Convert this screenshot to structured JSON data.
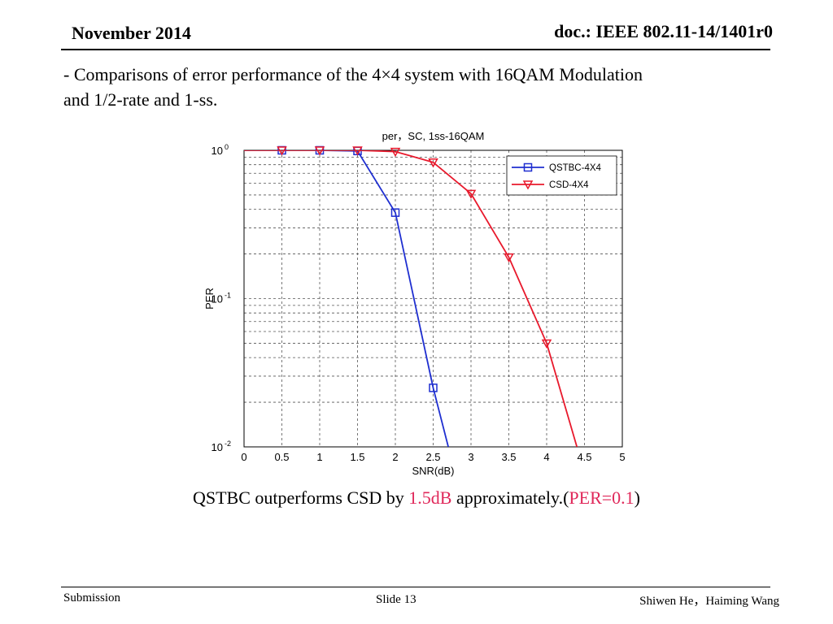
{
  "header": {
    "date": "November 2014",
    "doc_id": "doc.: IEEE 802.11-14/1401r0"
  },
  "intro": {
    "line1": "-  Comparisons of error performance of the 4×4 system with 16QAM Modulation",
    "line2": "and 1/2-rate and 1-ss."
  },
  "caption": {
    "part1": "QSTBC outperforms CSD by ",
    "highlight1": "1.5dB",
    "part2": " approximately.(",
    "highlight2": "PER=0.1",
    "part3": ")"
  },
  "footer": {
    "submission": "Submission",
    "slide": "Slide 13",
    "authors": "Shiwen He，Haiming Wang"
  },
  "colors": {
    "qstbc": "#1f2fd0",
    "csd": "#e8192c",
    "highlight": "#e0285a"
  },
  "chart_data": {
    "type": "line",
    "title": "per，SC, 1ss-16QAM",
    "xlabel": "SNR(dB)",
    "ylabel": "PER",
    "xlim": [
      0,
      5
    ],
    "ylim": [
      0.01,
      1
    ],
    "yscale": "log",
    "grid": true,
    "legend": "top-right",
    "x_ticks": [
      "0",
      "0.5",
      "1",
      "1.5",
      "2",
      "2.5",
      "3",
      "3.5",
      "4",
      "4.5",
      "5"
    ],
    "y_ticks": [
      {
        "base": "10",
        "exp": "0"
      },
      {
        "base": "10",
        "exp": "-1"
      },
      {
        "base": "10",
        "exp": "-2"
      }
    ],
    "series": [
      {
        "name": "QSTBC-4X4",
        "marker": "square",
        "x": [
          0,
          0.5,
          1,
          1.5,
          2,
          2.5,
          2.7
        ],
        "y": [
          1.0,
          1.0,
          1.0,
          0.99,
          0.38,
          0.025,
          0.01
        ]
      },
      {
        "name": "CSD-4X4",
        "marker": "triangle-down",
        "x": [
          0,
          0.5,
          1,
          1.5,
          2,
          2.5,
          3,
          3.5,
          4,
          4.4
        ],
        "y": [
          1.0,
          1.0,
          1.0,
          1.0,
          0.98,
          0.83,
          0.51,
          0.19,
          0.05,
          0.01
        ]
      }
    ]
  }
}
